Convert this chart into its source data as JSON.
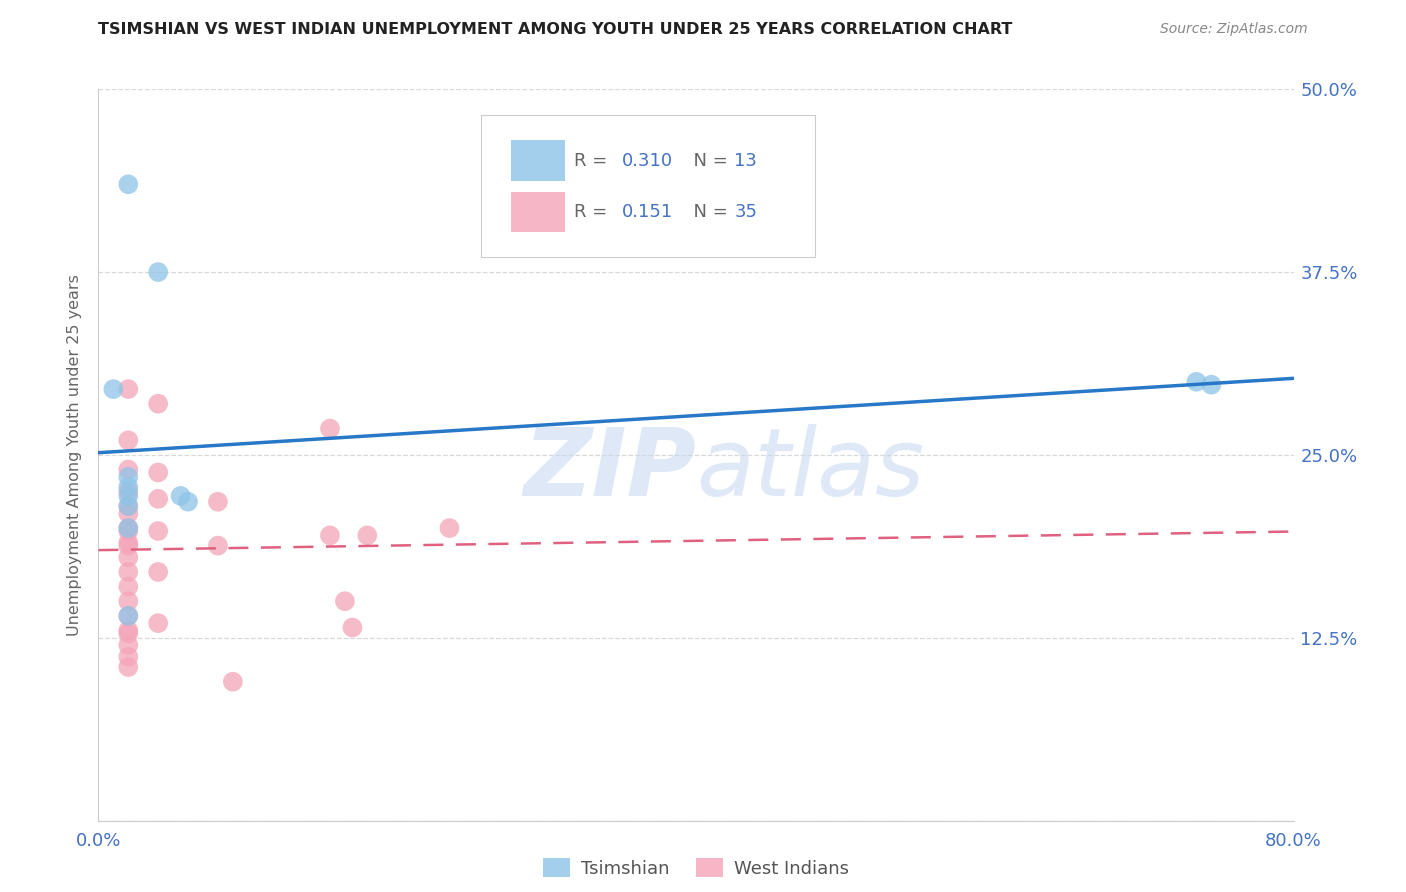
{
  "title": "TSIMSHIAN VS WEST INDIAN UNEMPLOYMENT AMONG YOUTH UNDER 25 YEARS CORRELATION CHART",
  "source": "Source: ZipAtlas.com",
  "ylabel": "Unemployment Among Youth under 25 years",
  "xlim": [
    0.0,
    0.8
  ],
  "ylim": [
    0.0,
    0.5
  ],
  "xticks": [
    0.0,
    0.1,
    0.2,
    0.3,
    0.4,
    0.5,
    0.6,
    0.7,
    0.8
  ],
  "yticks": [
    0.0,
    0.125,
    0.25,
    0.375,
    0.5
  ],
  "ytick_labels": [
    "",
    "12.5%",
    "25.0%",
    "37.5%",
    "50.0%"
  ],
  "xtick_labels": [
    "0.0%",
    "",
    "",
    "",
    "",
    "",
    "",
    "",
    "80.0%"
  ],
  "legend_R_tsimshian": "0.310",
  "legend_N_tsimshian": "13",
  "legend_R_west_indian": "0.151",
  "legend_N_west_indian": "35",
  "tsimshian_color": "#8ec4e8",
  "west_indian_color": "#f4a4b8",
  "trend_tsimshian_color": "#2878c8",
  "trend_west_indian_color": "#e06080",
  "watermark_color": "#c8daf0",
  "axis_color": "#4472c4",
  "grid_color": "#d8d8d8",
  "tsimshian_x": [
    0.02,
    0.04,
    0.01,
    0.02,
    0.02,
    0.02,
    0.02,
    0.02,
    0.02,
    0.055,
    0.06,
    0.735,
    0.745
  ],
  "tsimshian_y": [
    0.435,
    0.375,
    0.295,
    0.235,
    0.228,
    0.222,
    0.215,
    0.2,
    0.14,
    0.222,
    0.218,
    0.3,
    0.298
  ],
  "west_indian_x": [
    0.02,
    0.02,
    0.02,
    0.02,
    0.02,
    0.02,
    0.02,
    0.02,
    0.02,
    0.02,
    0.02,
    0.02,
    0.02,
    0.02,
    0.02,
    0.02,
    0.02,
    0.02,
    0.02,
    0.02,
    0.04,
    0.04,
    0.04,
    0.04,
    0.04,
    0.04,
    0.08,
    0.08,
    0.09,
    0.155,
    0.155,
    0.165,
    0.17,
    0.18,
    0.235
  ],
  "west_indian_y": [
    0.295,
    0.26,
    0.24,
    0.225,
    0.215,
    0.21,
    0.2,
    0.198,
    0.19,
    0.188,
    0.18,
    0.17,
    0.16,
    0.15,
    0.14,
    0.13,
    0.128,
    0.12,
    0.112,
    0.105,
    0.285,
    0.238,
    0.22,
    0.198,
    0.17,
    0.135,
    0.218,
    0.188,
    0.095,
    0.268,
    0.195,
    0.15,
    0.132,
    0.195,
    0.2
  ]
}
